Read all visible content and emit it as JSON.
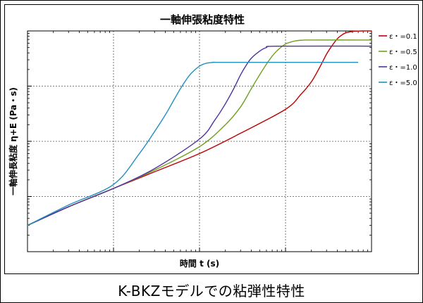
{
  "chart_data": {
    "type": "line",
    "title": "一軸伸張粘度特性",
    "xlabel": "時間 t (s)",
    "ylabel": "一軸伸長粘度 η+E (Pa・s)",
    "x_scale": "log",
    "y_scale": "log",
    "xlim": [
      0.001,
      10
    ],
    "ylim": [
      1,
      10000
    ],
    "grid": true,
    "legend_position": "right",
    "series": [
      {
        "name": "ε・=0.1",
        "color": "#c00000",
        "x": [
          0.001,
          0.003,
          0.01,
          0.03,
          0.1,
          0.3,
          1.0,
          1.5,
          2.0,
          2.5,
          3.0,
          3.5,
          4.0,
          4.5,
          5.0,
          6.0,
          7.0,
          8.0,
          10.0
        ],
        "y": [
          3.0,
          6.5,
          14,
          28,
          60,
          140,
          380,
          700,
          1200,
          2200,
          3800,
          5500,
          7200,
          8400,
          9200,
          9800,
          9950,
          10000,
          10000
        ]
      },
      {
        "name": "ε・=0.5",
        "color": "#70a020",
        "x": [
          0.001,
          0.003,
          0.01,
          0.03,
          0.1,
          0.2,
          0.3,
          0.4,
          0.5,
          0.6,
          0.7,
          0.8,
          1.0,
          1.3,
          1.6,
          2.0,
          10.0
        ],
        "y": [
          3.0,
          6.5,
          14,
          30,
          80,
          200,
          420,
          900,
          1600,
          2500,
          3500,
          4400,
          5800,
          6600,
          6800,
          6850,
          6850
        ]
      },
      {
        "name": "ε・=1.0",
        "color": "#5030a0",
        "x": [
          0.001,
          0.003,
          0.01,
          0.03,
          0.1,
          0.15,
          0.2,
          0.25,
          0.3,
          0.35,
          0.4,
          0.5,
          0.6,
          0.8,
          10.0
        ],
        "y": [
          3.0,
          6.5,
          14,
          32,
          110,
          240,
          480,
          900,
          1600,
          2400,
          3200,
          4300,
          5000,
          5300,
          5300
        ]
      },
      {
        "name": "ε・=5.0",
        "color": "#2090c0",
        "x": [
          0.001,
          0.003,
          0.01,
          0.02,
          0.03,
          0.04,
          0.05,
          0.06,
          0.07,
          0.08,
          0.1,
          0.12,
          0.15,
          0.2,
          7.0
        ],
        "y": [
          3.0,
          7.0,
          16.5,
          60,
          150,
          300,
          550,
          900,
          1300,
          1700,
          2300,
          2600,
          2700,
          2700,
          2700
        ]
      }
    ]
  },
  "caption": "K-BKZモデルでの粘弾性特性"
}
